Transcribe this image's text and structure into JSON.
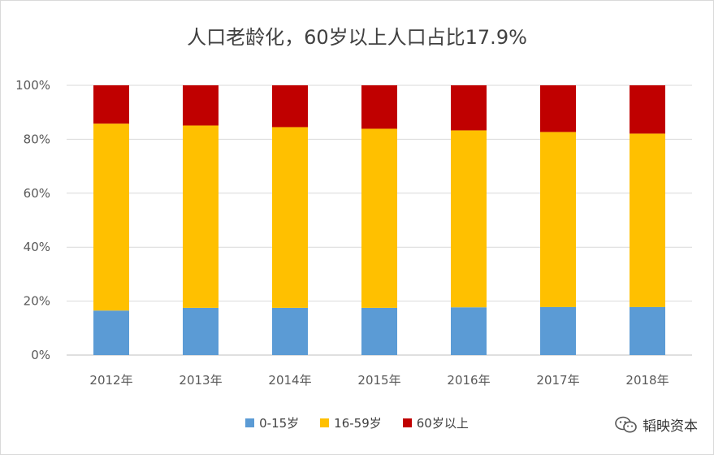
{
  "chart_data": {
    "type": "bar",
    "stacked": true,
    "percent": true,
    "title": "人口老龄化，60岁以上人口占比17.9%",
    "categories": [
      "2012年",
      "2013年",
      "2014年",
      "2015年",
      "2016年",
      "2017年",
      "2018年"
    ],
    "series": [
      {
        "name": "0-15岁",
        "color": "#5b9bd5",
        "values": [
          16.5,
          17.5,
          17.5,
          17.5,
          17.7,
          17.8,
          17.8
        ]
      },
      {
        "name": "16-59岁",
        "color": "#ffc000",
        "values": [
          69.3,
          67.6,
          67.0,
          66.4,
          65.6,
          64.9,
          64.3
        ]
      },
      {
        "name": "60岁以上",
        "color": "#c00000",
        "values": [
          14.2,
          14.9,
          15.5,
          16.1,
          16.7,
          17.3,
          17.9
        ]
      }
    ],
    "y_ticks": [
      "0%",
      "20%",
      "40%",
      "60%",
      "80%",
      "100%"
    ],
    "ylim": [
      0,
      100
    ],
    "grid": true,
    "legend_position": "bottom"
  },
  "watermark": {
    "text": "韬映资本",
    "icon": "wechat-icon"
  }
}
